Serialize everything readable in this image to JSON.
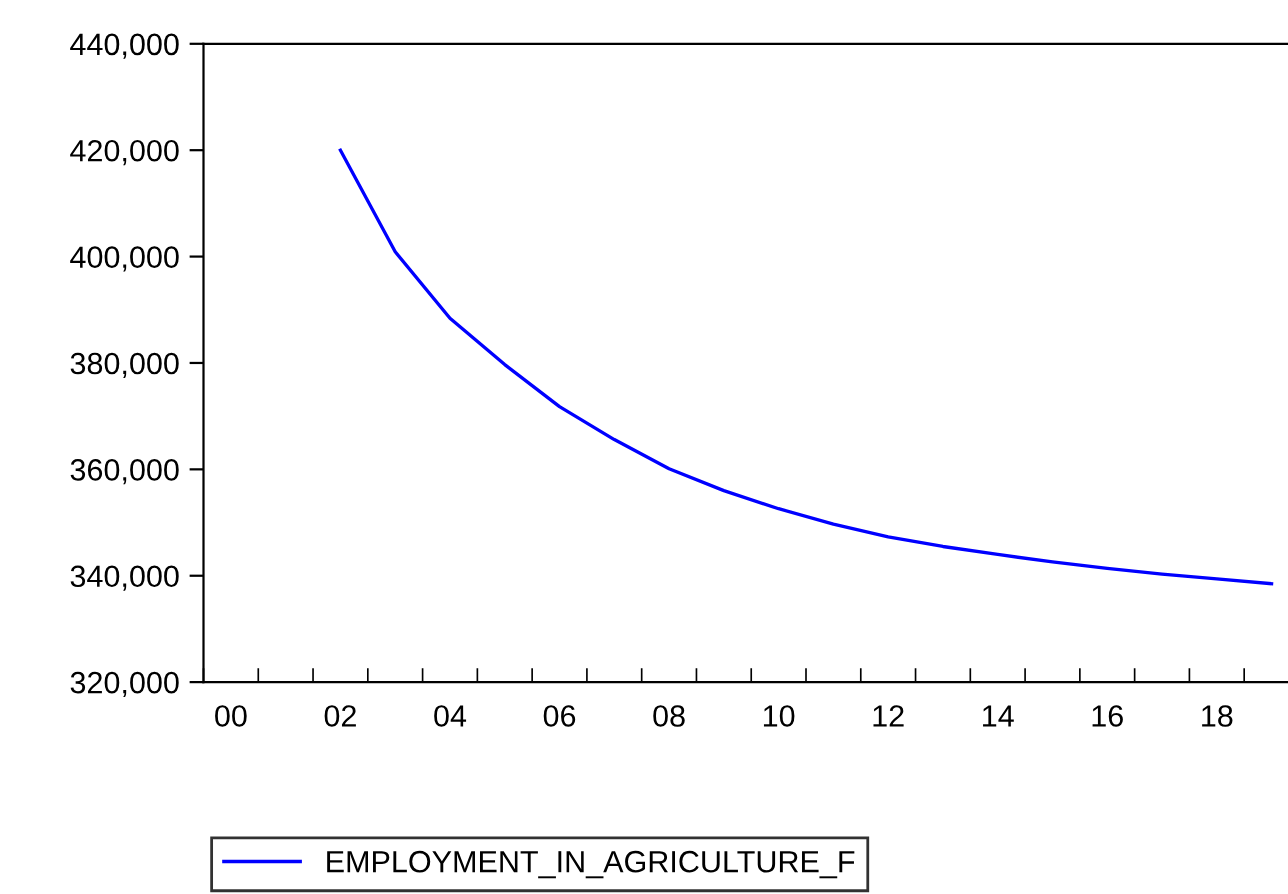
{
  "chart_data": {
    "type": "line",
    "x": [
      2002,
      2003,
      2004,
      2005,
      2006,
      2007,
      2008,
      2009,
      2010,
      2011,
      2012,
      2013,
      2014,
      2015,
      2016,
      2017,
      2018,
      2019
    ],
    "series": [
      {
        "name": "EMPLOYMENT_IN_AGRICULTURE_F",
        "color": "#0000ff",
        "values": [
          420000,
          400900,
          388400,
          379700,
          371800,
          365600,
          360100,
          356000,
          352600,
          349700,
          347300,
          345500,
          344000,
          342600,
          341400,
          340300,
          339400,
          338500
        ]
      }
    ],
    "xlim": [
      1999.5,
      2019.3
    ],
    "xticks": [
      {
        "value": 2000,
        "label": "00"
      },
      {
        "value": 2002,
        "label": "02"
      },
      {
        "value": 2004,
        "label": "04"
      },
      {
        "value": 2006,
        "label": "06"
      },
      {
        "value": 2008,
        "label": "08"
      },
      {
        "value": 2010,
        "label": "10"
      },
      {
        "value": 2012,
        "label": "12"
      },
      {
        "value": 2014,
        "label": "14"
      },
      {
        "value": 2016,
        "label": "16"
      },
      {
        "value": 2018,
        "label": "18"
      }
    ],
    "ylim": [
      320000,
      440000
    ],
    "yticks": [
      {
        "value": 320000,
        "label": "320,000"
      },
      {
        "value": 340000,
        "label": "340,000"
      },
      {
        "value": 360000,
        "label": "360,000"
      },
      {
        "value": 380000,
        "label": "380,000"
      },
      {
        "value": 400000,
        "label": "400,000"
      },
      {
        "value": 420000,
        "label": "420,000"
      },
      {
        "value": 440000,
        "label": "440,000"
      }
    ],
    "legend": "bottom",
    "grid": false,
    "marker": "none",
    "line_style": "solid"
  }
}
